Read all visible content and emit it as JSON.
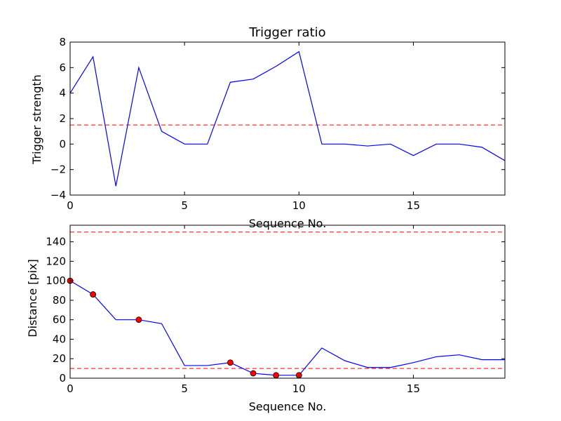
{
  "chart_data": [
    {
      "type": "line",
      "title": "Trigger ratio",
      "xlabel": "Sequence No.",
      "ylabel": "Trigger strength",
      "xlim": [
        0,
        19
      ],
      "ylim": [
        -4,
        8
      ],
      "xticks": [
        0,
        5,
        10,
        15
      ],
      "yticks": [
        -4,
        -2,
        0,
        2,
        4,
        6,
        8
      ],
      "grid": false,
      "series": [
        {
          "color": "#0000ff",
          "x": [
            0,
            1,
            2,
            3,
            4,
            5,
            6,
            7,
            8,
            9,
            10,
            11,
            12,
            13,
            14,
            15,
            16,
            17,
            18,
            19
          ],
          "y": [
            4.0,
            6.85,
            -3.3,
            6.0,
            1.0,
            0.0,
            0.0,
            4.85,
            5.1,
            6.1,
            7.25,
            0.0,
            0.0,
            -0.15,
            0.0,
            -0.9,
            0.0,
            0.0,
            -0.25,
            -1.3
          ]
        }
      ],
      "hlines": [
        {
          "y": 1.5,
          "color": "#ff0000",
          "style": "dashed"
        }
      ]
    },
    {
      "type": "line",
      "title": "",
      "xlabel": "Sequence No.",
      "ylabel": "Distance [pix]",
      "xlim": [
        0,
        19
      ],
      "ylim": [
        0,
        157
      ],
      "xticks": [
        0,
        5,
        10,
        15
      ],
      "yticks": [
        0,
        20,
        40,
        60,
        80,
        100,
        120,
        140
      ],
      "grid": false,
      "series": [
        {
          "color": "#0000ff",
          "x": [
            0,
            1,
            2,
            3,
            4,
            5,
            6,
            7,
            8,
            9,
            10,
            11,
            12,
            13,
            14,
            15,
            16,
            17,
            18,
            19
          ],
          "y": [
            100,
            86,
            60,
            60,
            56,
            13,
            13,
            16,
            5,
            3,
            3,
            31,
            18,
            11,
            11,
            16,
            22,
            24,
            19,
            19
          ]
        }
      ],
      "markers": {
        "color": "#ff0000",
        "edge_color": "#000000",
        "x": [
          0,
          1,
          3,
          7,
          8,
          9,
          10
        ],
        "y": [
          100,
          86,
          60,
          16,
          5,
          3,
          3
        ]
      },
      "hlines": [
        {
          "y": 150,
          "color": "#ff0000",
          "style": "dashed"
        },
        {
          "y": 10,
          "color": "#ff0000",
          "style": "dashed"
        }
      ]
    }
  ]
}
